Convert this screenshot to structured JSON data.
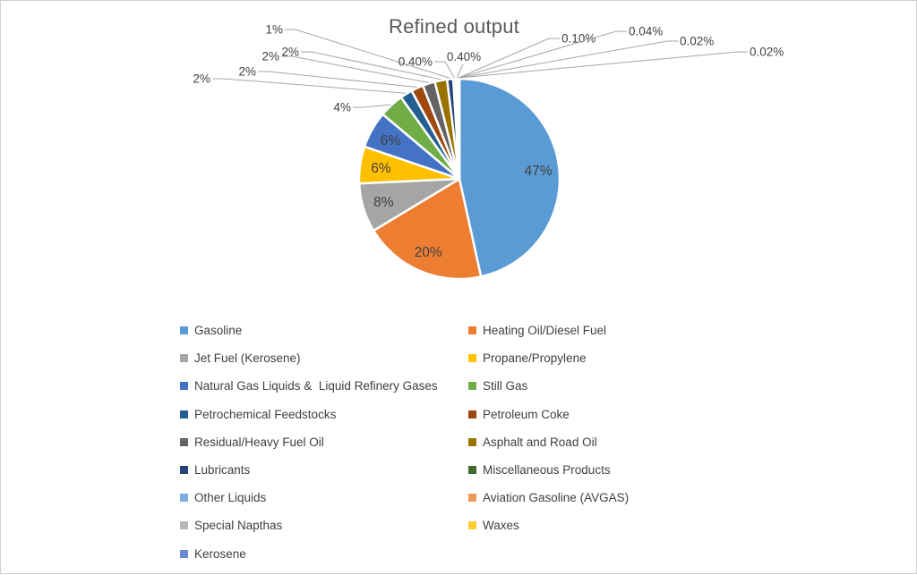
{
  "chart": {
    "title": "Refined output"
  },
  "chart_data": {
    "type": "pie",
    "title": "Refined output",
    "legend_position": "bottom",
    "start_angle": "12 o'clock",
    "direction": "clockwise",
    "series": [
      {
        "name": "Gasoline",
        "value": 47,
        "label": "47%",
        "color": "#5B9BD5",
        "label_placement": "inside"
      },
      {
        "name": "Heating Oil/Diesel Fuel",
        "value": 20,
        "label": "20%",
        "color": "#ED7D31",
        "label_placement": "inside"
      },
      {
        "name": "Jet Fuel (Kerosene)",
        "value": 8,
        "label": "8%",
        "color": "#A5A5A5",
        "label_placement": "inside"
      },
      {
        "name": "Propane/Propylene",
        "value": 6,
        "label": "6%",
        "color": "#FFC000",
        "label_placement": "inside"
      },
      {
        "name": "Natural Gas Liquids &  Liquid Refinery Gases",
        "value": 6,
        "label": "6%",
        "color": "#4472C4",
        "label_placement": "inside"
      },
      {
        "name": "Still Gas",
        "value": 4,
        "label": "4%",
        "color": "#70AD47",
        "label_placement": "outside"
      },
      {
        "name": "Petrochemical Feedstocks",
        "value": 2,
        "label": "2%",
        "color": "#255E91",
        "label_placement": "outside"
      },
      {
        "name": "Petroleum Coke",
        "value": 2,
        "label": "2%",
        "color": "#9E480E",
        "label_placement": "outside"
      },
      {
        "name": "Residual/Heavy Fuel Oil",
        "value": 2,
        "label": "2%",
        "color": "#636363",
        "label_placement": "outside"
      },
      {
        "name": "Asphalt and Road Oil",
        "value": 2,
        "label": "2%",
        "color": "#997300",
        "label_placement": "outside"
      },
      {
        "name": "Lubricants",
        "value": 1,
        "label": "1%",
        "color": "#264478",
        "label_placement": "outside"
      },
      {
        "name": "Miscellaneous Products",
        "value": 0.4,
        "label": "0.40%",
        "color": "#43682B",
        "label_placement": "outside"
      },
      {
        "name": "Other Liquids",
        "value": 0.4,
        "label": "0.40%",
        "color": "#7CAFDD",
        "label_placement": "outside"
      },
      {
        "name": "Aviation Gasoline (AVGAS)",
        "value": 0.1,
        "label": "0.10%",
        "color": "#F1975A",
        "label_placement": "outside"
      },
      {
        "name": "Special Napthas",
        "value": 0.04,
        "label": "0.04%",
        "color": "#B7B7B7",
        "label_placement": "outside"
      },
      {
        "name": "Waxes",
        "value": 0.02,
        "label": "0.02%",
        "color": "#FFCD33",
        "label_placement": "outside"
      },
      {
        "name": "Kerosene",
        "value": 0.02,
        "label": "0.02%",
        "color": "#698ED0",
        "label_placement": "outside"
      }
    ]
  }
}
